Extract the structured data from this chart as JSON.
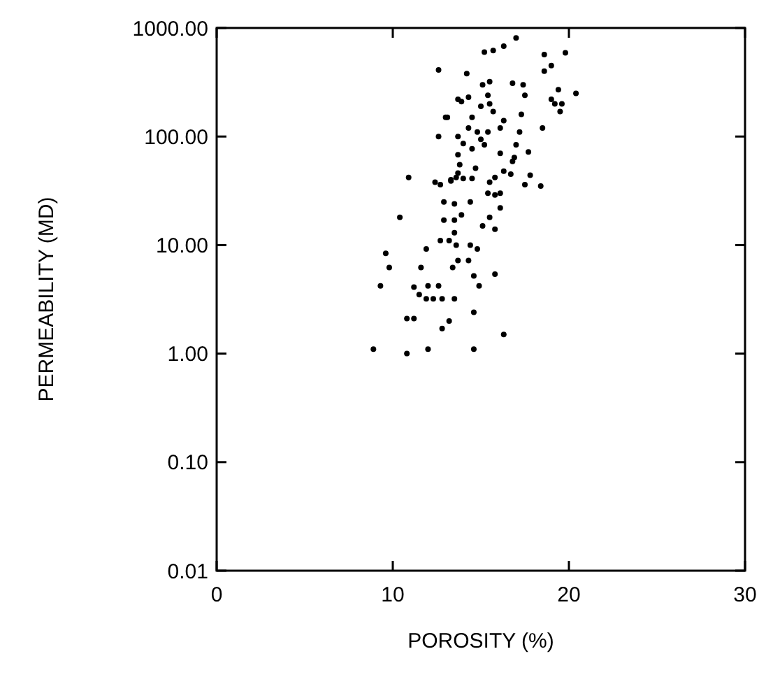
{
  "chart_data": {
    "type": "scatter",
    "xlabel": "POROSITY (%)",
    "ylabel": "PERMEABILITY (MD)",
    "log": "y",
    "xlim": [
      0,
      30
    ],
    "ylim": [
      0.01,
      1000
    ],
    "xticks": [
      0,
      10,
      20,
      30
    ],
    "yticks": [
      {
        "value": 0.01,
        "label": "0.01"
      },
      {
        "value": 0.1,
        "label": "0.10"
      },
      {
        "value": 1,
        "label": "1.00"
      },
      {
        "value": 10,
        "label": "10.00"
      },
      {
        "value": 100,
        "label": "100.00"
      },
      {
        "value": 1000,
        "label": "1000.00"
      }
    ],
    "grid": false,
    "marker": "circle",
    "series": [
      {
        "color": "#000000",
        "x": [
          12.6,
          13.0,
          12.6,
          10.9,
          12.4,
          12.7,
          13.3,
          17.0,
          15.2,
          15.7,
          16.3,
          18.6,
          19.8,
          18.6,
          19.0,
          14.2,
          15.1,
          15.5,
          16.8,
          17.4,
          19.4,
          20.4,
          13.7,
          13.9,
          14.3,
          15.4,
          17.5,
          19.0,
          19.2,
          19.6,
          19.5,
          13.1,
          15.0,
          15.5,
          15.7,
          14.5,
          17.3,
          16.3,
          16.1,
          14.3,
          14.8,
          15.4,
          13.7,
          15.0,
          17.2,
          18.5,
          14.0,
          15.2,
          17.0,
          14.5,
          16.1,
          17.7,
          13.7,
          16.9,
          13.8,
          16.8,
          14.7,
          16.3,
          16.7,
          13.7,
          13.3,
          13.6,
          14.0,
          14.5,
          15.8,
          15.5,
          17.8,
          17.5,
          18.4,
          15.4,
          15.8,
          16.1,
          12.9,
          13.5,
          14.4,
          16.1,
          10.4,
          12.9,
          13.5,
          13.9,
          15.5,
          15.1,
          15.8,
          13.5,
          13.2,
          12.7,
          13.6,
          14.4,
          14.8,
          11.9,
          9.6,
          13.4,
          13.7,
          14.3,
          11.6,
          9.8,
          14.6,
          15.8,
          9.3,
          11.2,
          12.0,
          12.6,
          14.9,
          11.5,
          11.9,
          12.3,
          12.8,
          13.5,
          14.6,
          10.8,
          11.2,
          13.2,
          12.8,
          16.3,
          8.9,
          10.8,
          12.0,
          14.6
        ],
        "values": [
          410,
          150,
          100,
          42,
          38,
          36,
          40,
          810,
          600,
          620,
          680,
          570,
          590,
          400,
          450,
          380,
          300,
          320,
          310,
          300,
          270,
          250,
          220,
          210,
          230,
          240,
          240,
          220,
          200,
          200,
          170,
          150,
          190,
          200,
          170,
          150,
          160,
          140,
          120,
          120,
          110,
          110,
          100,
          94,
          110,
          120,
          86,
          84,
          84,
          77,
          70,
          72,
          68,
          64,
          55,
          59,
          51,
          48,
          45,
          46,
          39,
          42,
          41,
          41,
          42,
          38,
          44,
          36,
          35,
          30,
          29,
          30,
          25,
          24,
          25,
          22,
          18,
          17,
          17,
          19,
          18,
          15,
          14,
          13,
          11,
          11,
          10,
          10,
          9.2,
          9.2,
          8.4,
          6.2,
          7.2,
          7.2,
          6.2,
          6.2,
          5.2,
          5.4,
          4.2,
          4.1,
          4.2,
          4.2,
          4.2,
          3.5,
          3.2,
          3.2,
          3.2,
          3.2,
          2.4,
          2.1,
          2.1,
          2.0,
          1.7,
          1.5,
          1.1,
          1.0,
          1.1,
          1.1
        ]
      }
    ]
  }
}
